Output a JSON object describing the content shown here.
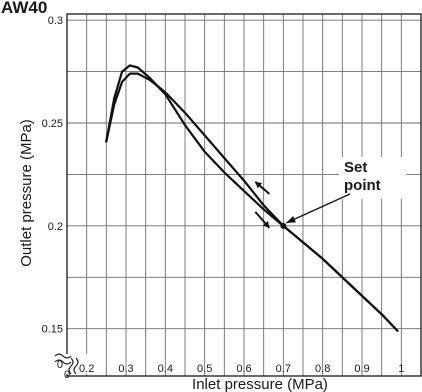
{
  "chart_data": {
    "type": "line",
    "heading": "AW40",
    "xlabel": "Inlet pressure (MPa)",
    "ylabel": "Outlet pressure (MPa)",
    "xlim": [
      0.15,
      1.05
    ],
    "ylim": [
      0.127,
      0.303
    ],
    "x_ticks": [
      0.2,
      0.3,
      0.4,
      0.5,
      0.6,
      0.7,
      0.8,
      0.9,
      1
    ],
    "x_tick_labels": [
      "0.2",
      "0.3",
      "0.4",
      "0.5",
      "0.6",
      "0.7",
      "0.8",
      "0.9",
      "1"
    ],
    "y_ticks": [
      0.15,
      0.2,
      0.25,
      0.3
    ],
    "y_tick_labels": [
      "0.15",
      "0.2",
      "0.25",
      "0.3"
    ],
    "origin_label": "0",
    "grid": true,
    "set_point": {
      "x": 0.7,
      "y": 0.2,
      "label_line1": "Set",
      "label_line2": "point"
    },
    "series": [
      {
        "points": [
          [
            0.25,
            0.241
          ],
          [
            0.27,
            0.262
          ],
          [
            0.29,
            0.275
          ],
          [
            0.31,
            0.278
          ],
          [
            0.33,
            0.277
          ],
          [
            0.36,
            0.272
          ],
          [
            0.4,
            0.264
          ],
          [
            0.45,
            0.249
          ],
          [
            0.5,
            0.236
          ],
          [
            0.55,
            0.226
          ],
          [
            0.6,
            0.217
          ],
          [
            0.65,
            0.208
          ],
          [
            0.7,
            0.2
          ],
          [
            0.75,
            0.192
          ],
          [
            0.8,
            0.184
          ],
          [
            0.85,
            0.175
          ],
          [
            0.9,
            0.166
          ],
          [
            0.95,
            0.157
          ],
          [
            0.99,
            0.149
          ]
        ]
      },
      {
        "points": [
          [
            0.25,
            0.241
          ],
          [
            0.27,
            0.259
          ],
          [
            0.29,
            0.27
          ],
          [
            0.31,
            0.274
          ],
          [
            0.33,
            0.274
          ],
          [
            0.36,
            0.271
          ],
          [
            0.4,
            0.265
          ],
          [
            0.45,
            0.255
          ],
          [
            0.5,
            0.244
          ],
          [
            0.55,
            0.233
          ],
          [
            0.6,
            0.222
          ],
          [
            0.65,
            0.21
          ],
          [
            0.7,
            0.2
          ],
          [
            0.75,
            0.192
          ],
          [
            0.8,
            0.184
          ],
          [
            0.85,
            0.175
          ],
          [
            0.9,
            0.166
          ],
          [
            0.95,
            0.157
          ],
          [
            0.99,
            0.149
          ]
        ]
      }
    ]
  }
}
